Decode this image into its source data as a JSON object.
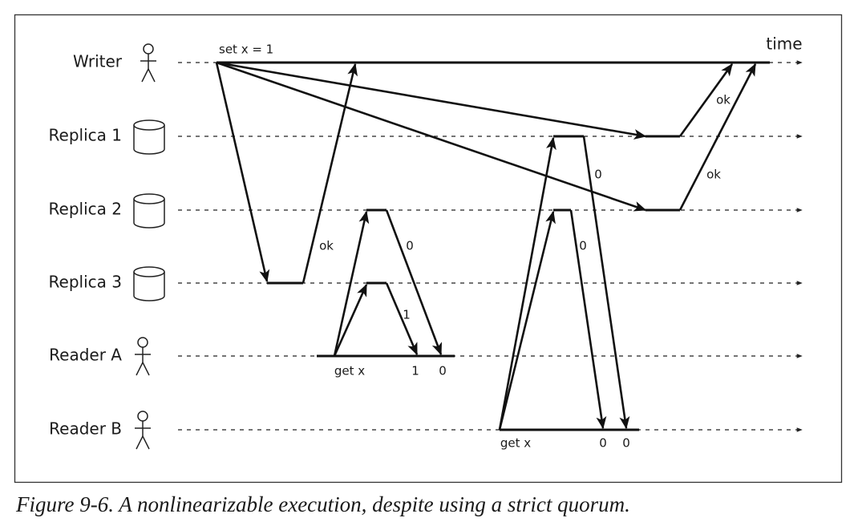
{
  "rows": [
    "Writer",
    "Replica 1",
    "Replica 2",
    "Replica 3",
    "Reader A",
    "Reader B"
  ],
  "time_label": "time",
  "write_label": "set x = 1",
  "message_labels": [
    "ok",
    "ok",
    "ok",
    "0",
    "1",
    "0",
    "0"
  ],
  "reader_a": {
    "request": "get x",
    "results": [
      "1",
      "0"
    ]
  },
  "reader_b": {
    "request": "get x",
    "results": [
      "0",
      "0"
    ]
  },
  "caption": "Figure 9-6. A nonlinearizable execution, despite using a strict quorum."
}
